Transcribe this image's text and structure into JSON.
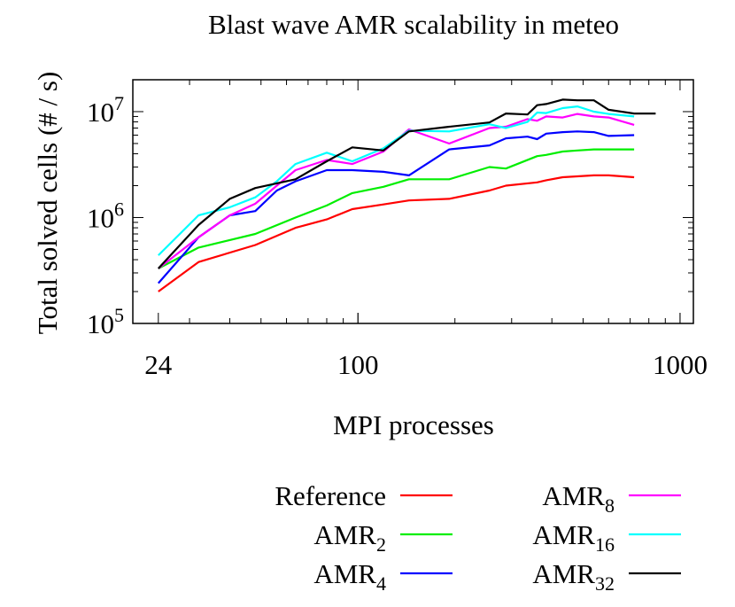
{
  "chart_data": {
    "type": "line",
    "title": "Blast wave AMR scalability in meteo",
    "xlabel": "MPI processes",
    "ylabel": "Total solved cells (# / s)",
    "xscale": "log",
    "yscale": "log",
    "xlim": [
      20,
      1100
    ],
    "ylim": [
      100000,
      20000000
    ],
    "x_ticks": [
      {
        "value": 24,
        "label": "24"
      },
      {
        "value": 100,
        "label": "100"
      },
      {
        "value": 1000,
        "label": "1000"
      }
    ],
    "y_ticks": [
      {
        "value": 100000,
        "base": "10",
        "exp": "5"
      },
      {
        "value": 1000000,
        "base": "10",
        "exp": "6"
      },
      {
        "value": 10000000,
        "base": "10",
        "exp": "7"
      }
    ],
    "legend": {
      "position": "bottom",
      "columns": 2
    },
    "series": [
      {
        "name": "Reference",
        "name_base": "Reference",
        "name_sub": "",
        "color": "#ff0000",
        "x": [
          24,
          32,
          48,
          64,
          80,
          96,
          120,
          144,
          192,
          256,
          288,
          360,
          384,
          432,
          480,
          540,
          600,
          720
        ],
        "y": [
          200000,
          380000,
          550000,
          800000,
          960000,
          1200000,
          1330000,
          1450000,
          1500000,
          1800000,
          2000000,
          2150000,
          2250000,
          2400000,
          2450000,
          2500000,
          2500000,
          2400000
        ]
      },
      {
        "name": "AMR2",
        "name_base": "AMR",
        "name_sub": "2",
        "color": "#00ee00",
        "x": [
          24,
          32,
          48,
          64,
          80,
          96,
          120,
          144,
          192,
          256,
          288,
          360,
          384,
          432,
          480,
          540,
          600,
          720
        ],
        "y": [
          330000,
          520000,
          700000,
          1000000,
          1300000,
          1700000,
          1950000,
          2300000,
          2300000,
          3000000,
          2900000,
          3800000,
          3900000,
          4200000,
          4300000,
          4400000,
          4400000,
          4400000
        ]
      },
      {
        "name": "AMR4",
        "name_base": "AMR",
        "name_sub": "4",
        "color": "#0000ff",
        "x": [
          24,
          32,
          40,
          48,
          56,
          64,
          80,
          96,
          120,
          144,
          192,
          256,
          288,
          336,
          360,
          384,
          432,
          480,
          540,
          600,
          720
        ],
        "y": [
          240000,
          650000,
          1050000,
          1150000,
          1800000,
          2200000,
          2800000,
          2800000,
          2700000,
          2500000,
          4400000,
          4800000,
          5600000,
          5800000,
          5500000,
          6200000,
          6400000,
          6500000,
          6400000,
          5900000,
          6000000
        ]
      },
      {
        "name": "AMR8",
        "name_base": "AMR",
        "name_sub": "8",
        "color": "#ff00ff",
        "x": [
          24,
          32,
          40,
          48,
          56,
          64,
          80,
          96,
          120,
          144,
          192,
          256,
          288,
          336,
          360,
          384,
          432,
          480,
          540,
          600,
          720
        ],
        "y": [
          330000,
          650000,
          1050000,
          1350000,
          2000000,
          2800000,
          3500000,
          3200000,
          4200000,
          6800000,
          5000000,
          7000000,
          7200000,
          8500000,
          8200000,
          9000000,
          8800000,
          9500000,
          9000000,
          8800000,
          7500000
        ]
      },
      {
        "name": "AMR16",
        "name_base": "AMR",
        "name_sub": "16",
        "color": "#00ffff",
        "x": [
          24,
          32,
          40,
          48,
          56,
          64,
          80,
          96,
          120,
          144,
          192,
          256,
          288,
          336,
          360,
          384,
          432,
          480,
          540,
          600,
          720
        ],
        "y": [
          440000,
          1050000,
          1250000,
          1550000,
          2200000,
          3200000,
          4100000,
          3400000,
          4500000,
          6600000,
          6500000,
          7600000,
          7000000,
          8000000,
          9800000,
          9700000,
          10800000,
          11200000,
          10000000,
          9500000,
          9000000
        ]
      },
      {
        "name": "AMR32",
        "name_base": "AMR",
        "name_sub": "32",
        "color": "#000000",
        "x": [
          24,
          32,
          40,
          48,
          64,
          80,
          96,
          120,
          144,
          192,
          256,
          288,
          336,
          360,
          384,
          432,
          480,
          540,
          600,
          720,
          840
        ],
        "y": [
          330000,
          850000,
          1500000,
          1900000,
          2300000,
          3400000,
          4600000,
          4300000,
          6500000,
          7200000,
          7900000,
          9600000,
          9400000,
          11500000,
          11800000,
          13000000,
          12800000,
          12800000,
          10400000,
          9600000,
          9600000
        ]
      }
    ]
  }
}
